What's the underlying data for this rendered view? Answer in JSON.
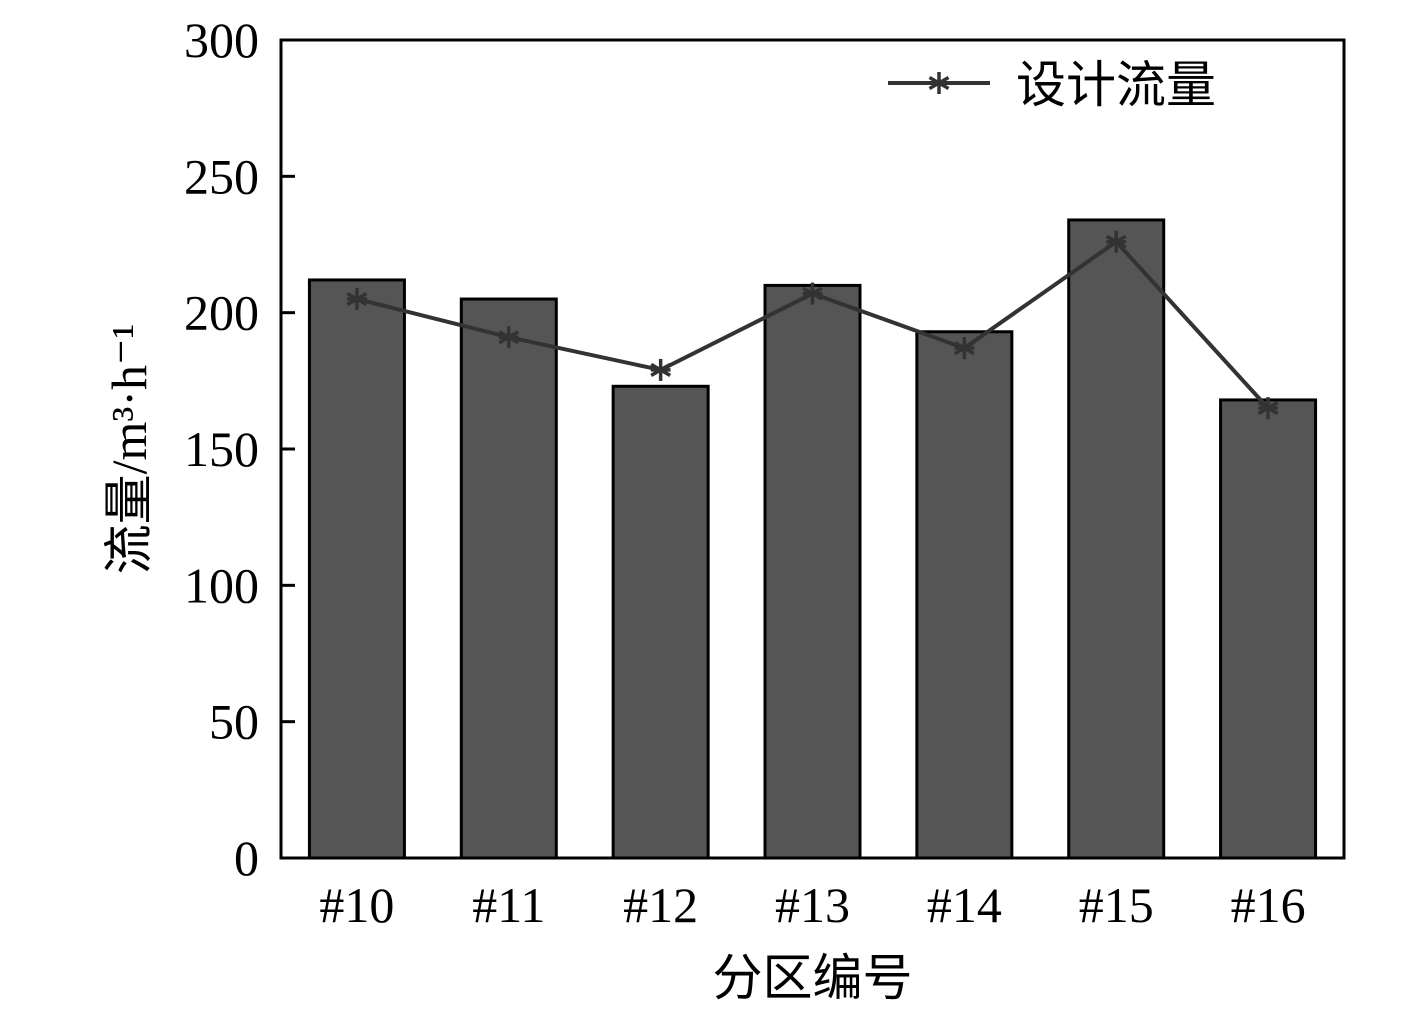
{
  "chart_data": {
    "type": "bar",
    "categories": [
      "#10",
      "#11",
      "#12",
      "#13",
      "#14",
      "#15",
      "#16"
    ],
    "values": [
      212,
      205,
      173,
      210,
      193,
      234,
      168
    ],
    "series": [
      {
        "values": [
          212,
          205,
          173,
          210,
          193,
          234,
          168
        ]
      },
      {
        "name": "设计流量",
        "type": "line",
        "marker": "asterisk",
        "values": [
          205,
          191,
          179,
          207,
          187,
          226,
          165
        ]
      }
    ],
    "xlabel": "分区编号",
    "ylabel": "流量/m³·h⁻¹",
    "ylim": [
      0,
      300
    ],
    "yticks": [
      0,
      50,
      100,
      150,
      200,
      250,
      300
    ],
    "grid": false,
    "legend": "top-right",
    "colors": {
      "bar": "#555555",
      "line": "#333333",
      "axis": "#000000"
    }
  }
}
